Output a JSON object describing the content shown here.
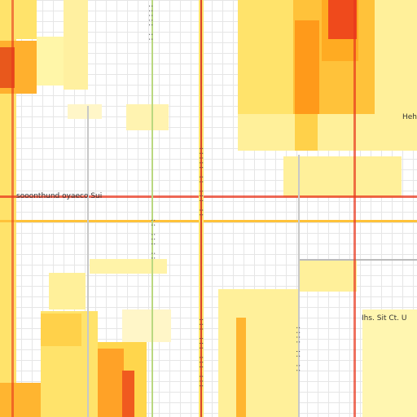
{
  "labels": {
    "left_mid": "sooonthund oyaeco Sui",
    "right_top": "Heh",
    "right_bottom": "Ihs. Sit Ct. U",
    "col_text_1": "::::: ::",
    "col_text_2": "::::: :: ::: ::",
    "col_text_3": ":: ::: ::",
    "col_text_4": "::: ::: ::: :::",
    "col_text_5": ":::: :: ::"
  },
  "colors": {
    "pale_yellow": "#fff6a8",
    "yellow": "#ffe36b",
    "amber": "#ffc23a",
    "orange": "#ff9a1a",
    "red": "#e8361c",
    "line_red": "#d9442a",
    "line_grey": "#bbbbbb"
  }
}
